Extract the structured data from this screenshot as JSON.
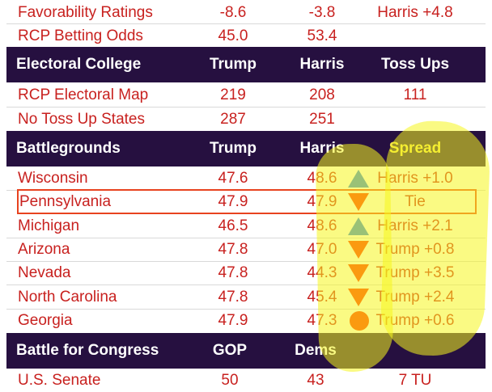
{
  "favorability": {
    "label": "Favorability Ratings",
    "trump": "-8.6",
    "harris": "-3.8",
    "spread": "Harris +4.8"
  },
  "betting": {
    "label": "RCP Betting Odds",
    "trump": "45.0",
    "harris": "53.4"
  },
  "electoral_header": {
    "title": "Electoral College",
    "col1": "Trump",
    "col2": "Harris",
    "col3": "Toss Ups"
  },
  "electoral_rows": [
    {
      "label": "RCP Electoral Map",
      "trump": "219",
      "harris": "208",
      "toss": "111"
    },
    {
      "label": "No Toss Up States",
      "trump": "287",
      "harris": "251",
      "toss": ""
    }
  ],
  "battleground_header": {
    "title": "Battlegrounds",
    "col1": "Trump",
    "col2": "Harris",
    "col3": "Spread"
  },
  "battlegrounds": [
    {
      "state": "Wisconsin",
      "trump": "47.6",
      "harris": "48.6",
      "spread": "Harris +1.0",
      "indicator": "triangle-up-icon"
    },
    {
      "state": "Pennsylvania",
      "trump": "47.9",
      "harris": "47.9",
      "spread": "Tie",
      "indicator": "triangle-down-icon"
    },
    {
      "state": "Michigan",
      "trump": "46.5",
      "harris": "48.6",
      "spread": "Harris +2.1",
      "indicator": "triangle-up-icon"
    },
    {
      "state": "Arizona",
      "trump": "47.8",
      "harris": "47.0",
      "spread": "Trump +0.8",
      "indicator": "triangle-down-icon"
    },
    {
      "state": "Nevada",
      "trump": "47.8",
      "harris": "44.3",
      "spread": "Trump +3.5",
      "indicator": "triangle-down-icon"
    },
    {
      "state": "North Carolina",
      "trump": "47.8",
      "harris": "45.4",
      "spread": "Trump +2.4",
      "indicator": "triangle-down-icon"
    },
    {
      "state": "Georgia",
      "trump": "47.9",
      "harris": "47.3",
      "spread": "Trump +0.6",
      "indicator": "circle-icon"
    }
  ],
  "congress_header": {
    "title": "Battle for Congress",
    "col1": "GOP",
    "col2": "Dems"
  },
  "congress_rows": [
    {
      "label": "U.S. Senate",
      "gop": "50",
      "dems": "43",
      "other": "7 TU"
    }
  ],
  "colors": {
    "accent_red": "#c8211f",
    "header_bg": "#261040",
    "up": "#2a82e4",
    "down": "#ff2a00",
    "highlight_box": "#e8431f",
    "marker": "#f5f51e"
  }
}
